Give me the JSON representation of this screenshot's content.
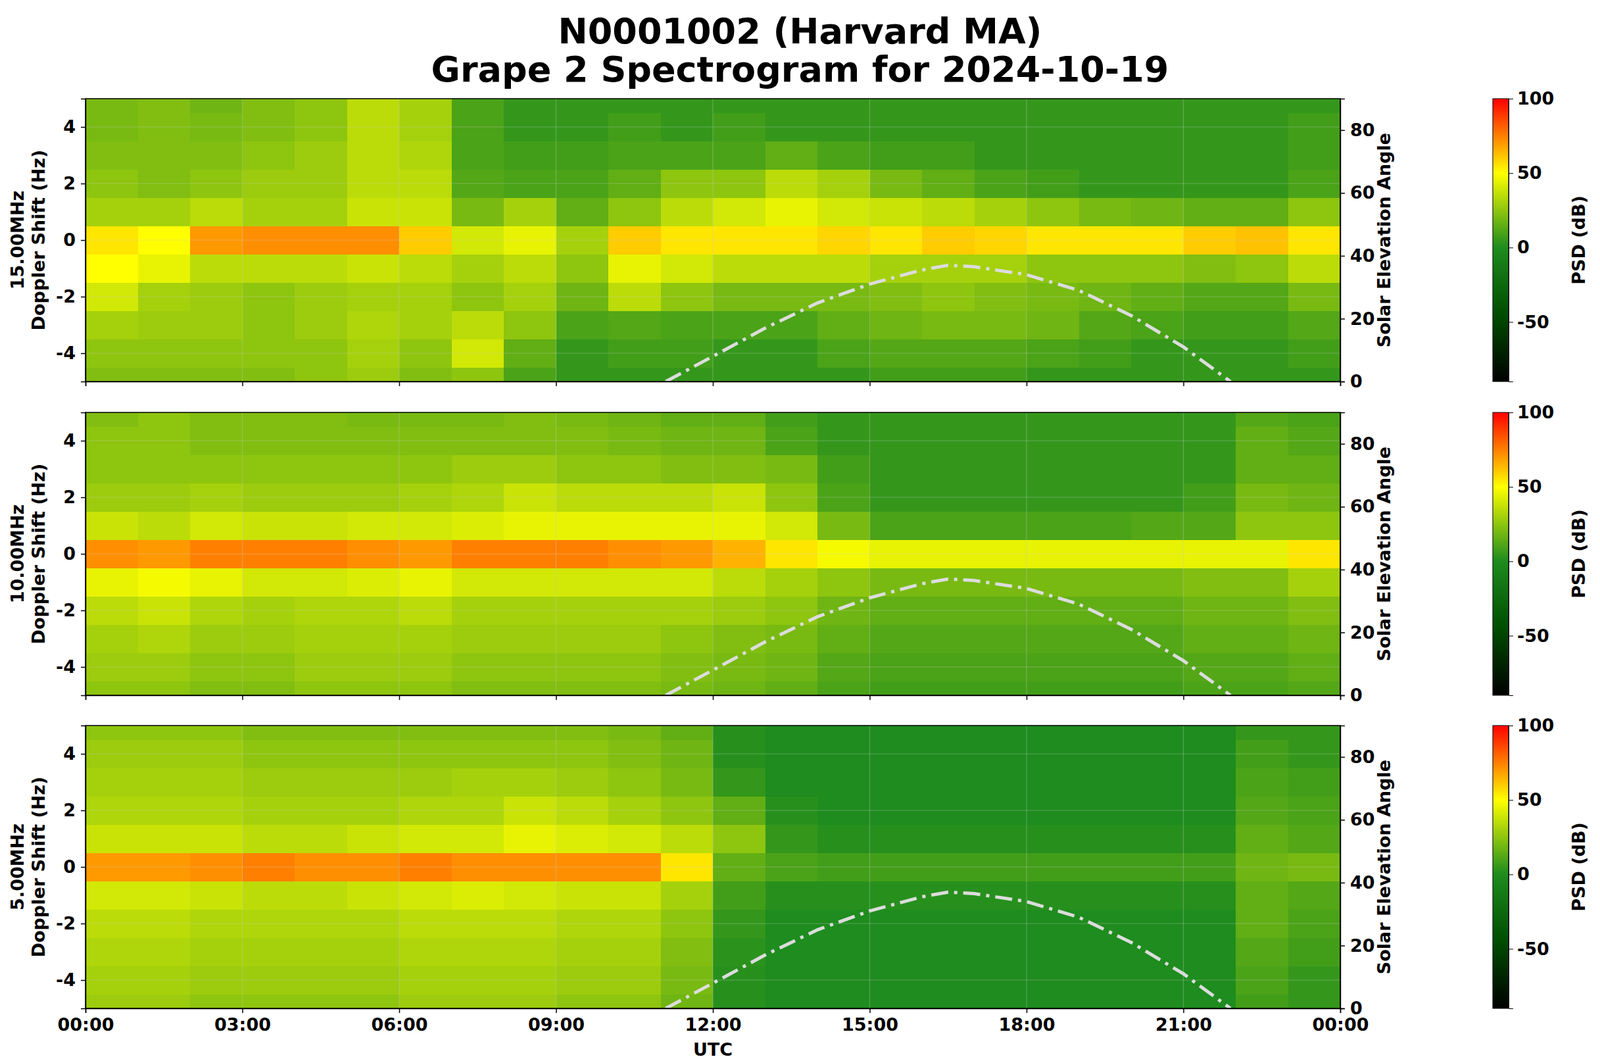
{
  "chart_data": [
    {
      "type": "heatmap",
      "title": [
        "N0001002 (Harvard MA)",
        "Grape 2 Spectrogram for 2024-10-19"
      ],
      "ylabel": [
        "15.00MHz",
        "Doppler Shift (Hz)"
      ],
      "y2label": "Solar Elevation Angle",
      "grid": true,
      "tick_labels": "y",
      "x": [
        0.5,
        1.5,
        2.5,
        3.5,
        4.5,
        5.5,
        6.5,
        7.5,
        8.5,
        9.5,
        10.5,
        11.5,
        12.5,
        13.5,
        14.5,
        15.5,
        16.5,
        17.5,
        18.5,
        19.5,
        20.5,
        21.5,
        22.5,
        23.5
      ],
      "y": [
        -5,
        -4,
        -3,
        -2,
        -1,
        0,
        1,
        2,
        3,
        4,
        5
      ],
      "xlim": [
        0,
        24
      ],
      "xticks": [
        0,
        3,
        6,
        9,
        12,
        15,
        18,
        21,
        24
      ],
      "ylim": [
        -5,
        5
      ],
      "yticks": [
        -4,
        -2,
        0,
        2,
        4
      ],
      "y2lim": [
        0,
        90
      ],
      "y2ticks": [
        0,
        20,
        40,
        60,
        80
      ],
      "z": [
        [
          22,
          22,
          22,
          22,
          25,
          28,
          22,
          25,
          10,
          5,
          5,
          5,
          5,
          5,
          5,
          8,
          8,
          8,
          5,
          5,
          5,
          5,
          5,
          5
        ],
        [
          25,
          25,
          25,
          25,
          25,
          30,
          25,
          40,
          15,
          5,
          8,
          8,
          5,
          5,
          10,
          12,
          12,
          12,
          10,
          8,
          5,
          5,
          5,
          8
        ],
        [
          30,
          28,
          28,
          25,
          28,
          32,
          30,
          35,
          25,
          10,
          12,
          10,
          10,
          10,
          15,
          18,
          20,
          20,
          18,
          12,
          10,
          8,
          8,
          12
        ],
        [
          40,
          30,
          28,
          25,
          28,
          30,
          30,
          25,
          30,
          18,
          35,
          25,
          20,
          20,
          20,
          22,
          25,
          22,
          20,
          18,
          15,
          12,
          12,
          20
        ],
        [
          50,
          45,
          35,
          35,
          35,
          38,
          35,
          30,
          35,
          25,
          45,
          40,
          35,
          35,
          35,
          30,
          30,
          30,
          25,
          25,
          25,
          22,
          25,
          35
        ],
        [
          55,
          50,
          70,
          72,
          72,
          72,
          60,
          40,
          45,
          30,
          60,
          55,
          55,
          55,
          58,
          55,
          60,
          58,
          55,
          55,
          55,
          60,
          62,
          55
        ],
        [
          30,
          30,
          35,
          30,
          30,
          38,
          38,
          20,
          30,
          15,
          25,
          35,
          40,
          45,
          40,
          38,
          35,
          30,
          25,
          20,
          18,
          15,
          15,
          25
        ],
        [
          25,
          22,
          25,
          28,
          28,
          35,
          35,
          12,
          10,
          10,
          15,
          25,
          25,
          35,
          30,
          20,
          15,
          10,
          8,
          5,
          5,
          5,
          5,
          10
        ],
        [
          22,
          22,
          22,
          25,
          28,
          35,
          32,
          10,
          8,
          8,
          10,
          10,
          10,
          15,
          10,
          8,
          8,
          5,
          5,
          5,
          5,
          5,
          5,
          8
        ],
        [
          20,
          22,
          20,
          22,
          25,
          35,
          30,
          10,
          5,
          5,
          8,
          5,
          8,
          5,
          5,
          5,
          5,
          5,
          5,
          5,
          5,
          5,
          5,
          8
        ],
        [
          20,
          22,
          18,
          22,
          25,
          35,
          30,
          10,
          5,
          5,
          5,
          5,
          5,
          5,
          5,
          5,
          5,
          5,
          5,
          5,
          5,
          5,
          5,
          5
        ]
      ],
      "colorbar": {
        "label": "PSD (dB)",
        "range": [
          -90,
          100
        ],
        "ticks": [
          -50,
          0,
          50,
          100
        ]
      },
      "series": [
        {
          "type": "line",
          "axis": "y2",
          "color": "#dcdcdc",
          "line_style": "dashdot",
          "x": [
            11.1,
            12,
            13,
            14,
            15,
            16,
            16.5,
            17,
            18,
            19,
            20,
            21,
            21.9
          ],
          "values": [
            0,
            8,
            17,
            25,
            31,
            35.5,
            37,
            36.5,
            34,
            29,
            21,
            11,
            0
          ]
        }
      ]
    },
    {
      "type": "heatmap",
      "ylabel": [
        "10.00MHz",
        "Doppler Shift (Hz)"
      ],
      "y2label": "Solar Elevation Angle",
      "grid": true,
      "tick_labels": "y",
      "x": [
        0.5,
        1.5,
        2.5,
        3.5,
        4.5,
        5.5,
        6.5,
        7.5,
        8.5,
        9.5,
        10.5,
        11.5,
        12.5,
        13.5,
        14.5,
        15.5,
        16.5,
        17.5,
        18.5,
        19.5,
        20.5,
        21.5,
        22.5,
        23.5
      ],
      "y": [
        -5,
        -4,
        -3,
        -2,
        -1,
        0,
        1,
        2,
        3,
        4,
        5
      ],
      "xlim": [
        0,
        24
      ],
      "xticks": [
        0,
        3,
        6,
        9,
        12,
        15,
        18,
        21,
        24
      ],
      "ylim": [
        -5,
        5
      ],
      "yticks": [
        -4,
        -2,
        0,
        2,
        4
      ],
      "y2lim": [
        0,
        90
      ],
      "y2ticks": [
        0,
        20,
        40,
        60,
        80
      ],
      "z": [
        [
          25,
          25,
          22,
          22,
          25,
          25,
          25,
          22,
          22,
          22,
          22,
          20,
          18,
          15,
          10,
          8,
          8,
          8,
          8,
          8,
          8,
          10,
          10,
          12
        ],
        [
          28,
          28,
          25,
          25,
          28,
          28,
          28,
          25,
          25,
          25,
          25,
          22,
          20,
          18,
          12,
          10,
          10,
          10,
          10,
          10,
          10,
          12,
          12,
          15
        ],
        [
          30,
          32,
          28,
          28,
          30,
          30,
          30,
          28,
          28,
          28,
          28,
          25,
          22,
          20,
          15,
          12,
          12,
          12,
          12,
          12,
          12,
          15,
          15,
          18
        ],
        [
          35,
          38,
          32,
          30,
          32,
          32,
          35,
          30,
          30,
          30,
          30,
          30,
          28,
          25,
          18,
          15,
          15,
          15,
          15,
          15,
          15,
          18,
          18,
          22
        ],
        [
          45,
          48,
          45,
          40,
          40,
          42,
          45,
          40,
          40,
          40,
          40,
          40,
          35,
          30,
          25,
          20,
          20,
          20,
          20,
          20,
          20,
          22,
          22,
          30
        ],
        [
          72,
          70,
          75,
          75,
          75,
          72,
          70,
          75,
          75,
          75,
          72,
          70,
          65,
          55,
          48,
          45,
          45,
          45,
          45,
          45,
          45,
          45,
          45,
          55
        ],
        [
          38,
          35,
          40,
          38,
          38,
          40,
          40,
          42,
          45,
          45,
          45,
          45,
          45,
          40,
          20,
          10,
          10,
          10,
          10,
          10,
          12,
          12,
          25,
          25
        ],
        [
          28,
          28,
          30,
          28,
          28,
          28,
          30,
          32,
          38,
          35,
          35,
          35,
          38,
          25,
          10,
          5,
          5,
          5,
          5,
          5,
          5,
          8,
          20,
          18
        ],
        [
          25,
          25,
          25,
          25,
          25,
          25,
          25,
          28,
          28,
          25,
          25,
          22,
          22,
          20,
          8,
          5,
          5,
          5,
          5,
          5,
          5,
          5,
          15,
          15
        ],
        [
          25,
          25,
          22,
          22,
          22,
          22,
          22,
          22,
          22,
          22,
          20,
          18,
          18,
          10,
          5,
          5,
          5,
          5,
          5,
          5,
          5,
          5,
          15,
          12
        ],
        [
          22,
          25,
          22,
          22,
          22,
          20,
          20,
          20,
          22,
          20,
          18,
          15,
          15,
          8,
          5,
          5,
          5,
          5,
          5,
          5,
          5,
          5,
          12,
          10
        ]
      ],
      "colorbar": {
        "label": "PSD (dB)",
        "range": [
          -90,
          100
        ],
        "ticks": [
          -50,
          0,
          50,
          100
        ]
      },
      "series": [
        {
          "type": "line",
          "axis": "y2",
          "color": "#dcdcdc",
          "line_style": "dashdot",
          "x": [
            11.1,
            12,
            13,
            14,
            15,
            16,
            16.5,
            17,
            18,
            19,
            20,
            21,
            21.9
          ],
          "values": [
            0,
            8,
            17,
            25,
            31,
            35.5,
            37,
            36.5,
            34,
            29,
            21,
            11,
            0
          ]
        }
      ]
    },
    {
      "type": "heatmap",
      "ylabel": [
        "5.00MHz",
        "Doppler Shift (Hz)"
      ],
      "y2label": "Solar Elevation Angle",
      "xlabel": "UTC",
      "grid": true,
      "x": [
        0.5,
        1.5,
        2.5,
        3.5,
        4.5,
        5.5,
        6.5,
        7.5,
        8.5,
        9.5,
        10.5,
        11.5,
        12.5,
        13.5,
        14.5,
        15.5,
        16.5,
        17.5,
        18.5,
        19.5,
        20.5,
        21.5,
        22.5,
        23.5
      ],
      "y": [
        -5,
        -4,
        -3,
        -2,
        -1,
        0,
        1,
        2,
        3,
        4,
        5
      ],
      "xlim": [
        0,
        24
      ],
      "xticks": [
        {
          "value": 0,
          "label": "00:00"
        },
        {
          "value": 3,
          "label": "03:00"
        },
        {
          "value": 6,
          "label": "06:00"
        },
        {
          "value": 9,
          "label": "09:00"
        },
        {
          "value": 12,
          "label": "12:00"
        },
        {
          "value": 15,
          "label": "15:00"
        },
        {
          "value": 18,
          "label": "18:00"
        },
        {
          "value": 21,
          "label": "21:00"
        },
        {
          "value": 24,
          "label": "00:00"
        }
      ],
      "ylim": [
        -5,
        5
      ],
      "yticks": [
        -4,
        -2,
        0,
        2,
        4
      ],
      "y2lim": [
        0,
        90
      ],
      "y2ticks": [
        0,
        20,
        40,
        60,
        80
      ],
      "z": [
        [
          28,
          28,
          25,
          25,
          25,
          25,
          28,
          28,
          28,
          25,
          25,
          18,
          2,
          0,
          0,
          0,
          0,
          0,
          0,
          0,
          0,
          0,
          8,
          5
        ],
        [
          30,
          30,
          28,
          28,
          28,
          28,
          30,
          30,
          30,
          28,
          28,
          20,
          2,
          0,
          0,
          0,
          0,
          0,
          0,
          0,
          0,
          0,
          10,
          5
        ],
        [
          32,
          32,
          30,
          30,
          30,
          30,
          32,
          32,
          32,
          30,
          30,
          22,
          3,
          0,
          0,
          0,
          0,
          0,
          0,
          0,
          0,
          0,
          12,
          8
        ],
        [
          35,
          35,
          32,
          32,
          32,
          32,
          35,
          35,
          35,
          32,
          32,
          25,
          5,
          0,
          0,
          0,
          0,
          0,
          0,
          0,
          0,
          0,
          15,
          10
        ],
        [
          40,
          40,
          38,
          35,
          35,
          38,
          40,
          42,
          40,
          38,
          38,
          30,
          8,
          2,
          2,
          2,
          2,
          2,
          2,
          2,
          2,
          2,
          15,
          12
        ],
        [
          70,
          70,
          72,
          75,
          72,
          72,
          75,
          72,
          72,
          72,
          72,
          55,
          15,
          10,
          8,
          8,
          8,
          8,
          8,
          8,
          8,
          8,
          18,
          20
        ],
        [
          38,
          38,
          38,
          35,
          35,
          38,
          40,
          40,
          45,
          42,
          40,
          35,
          25,
          5,
          2,
          2,
          2,
          2,
          2,
          2,
          2,
          2,
          15,
          12
        ],
        [
          32,
          32,
          32,
          30,
          30,
          30,
          32,
          32,
          38,
          35,
          30,
          25,
          15,
          2,
          0,
          0,
          0,
          0,
          0,
          0,
          0,
          0,
          12,
          10
        ],
        [
          30,
          30,
          30,
          28,
          28,
          28,
          28,
          30,
          30,
          28,
          25,
          20,
          5,
          0,
          0,
          0,
          0,
          0,
          0,
          0,
          0,
          0,
          10,
          8
        ],
        [
          28,
          28,
          28,
          25,
          25,
          25,
          25,
          25,
          25,
          25,
          22,
          18,
          2,
          0,
          0,
          0,
          0,
          0,
          0,
          0,
          0,
          0,
          8,
          5
        ],
        [
          25,
          25,
          25,
          22,
          22,
          22,
          22,
          22,
          22,
          22,
          20,
          15,
          2,
          0,
          0,
          0,
          0,
          0,
          0,
          0,
          0,
          0,
          5,
          5
        ]
      ],
      "colorbar": {
        "label": "PSD (dB)",
        "range": [
          -90,
          100
        ],
        "ticks": [
          -50,
          0,
          50,
          100
        ]
      },
      "series": [
        {
          "type": "line",
          "axis": "y2",
          "color": "#dcdcdc",
          "line_style": "dashdot",
          "x": [
            11.1,
            12,
            13,
            14,
            15,
            16,
            16.5,
            17,
            18,
            19,
            20,
            21,
            21.9
          ],
          "values": [
            0,
            8,
            17,
            25,
            31,
            35.5,
            37,
            36.5,
            34,
            29,
            21,
            11,
            0
          ]
        }
      ]
    }
  ]
}
